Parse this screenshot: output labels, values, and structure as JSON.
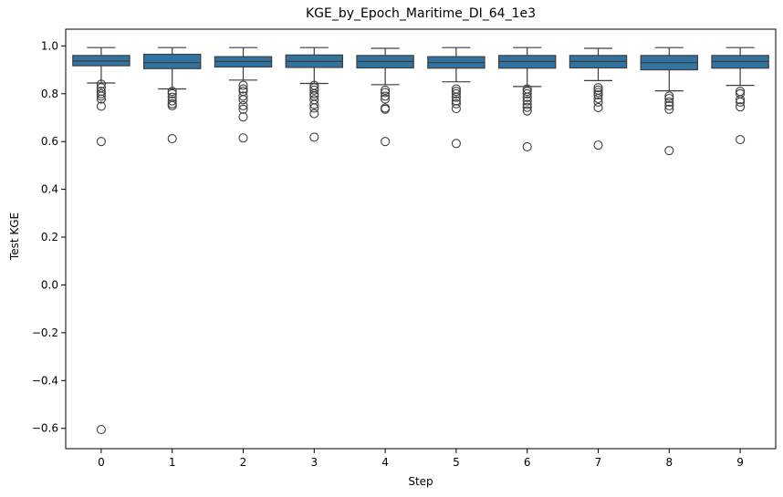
{
  "chart_data": {
    "type": "box",
    "title": "KGE_by_Epoch_Maritime_DI_64_1e3",
    "xlabel": "Step",
    "ylabel": "Test KGE",
    "ylim": [
      -0.685,
      1.07
    ],
    "yticks": [
      -0.6,
      -0.4,
      -0.2,
      0.0,
      0.2,
      0.4,
      0.6,
      0.8,
      1.0
    ],
    "ytick_labels": [
      "−0.6",
      "−0.4",
      "−0.2",
      "0.0",
      "0.2",
      "0.4",
      "0.6",
      "0.8",
      "1.0"
    ],
    "categories": [
      "0",
      "1",
      "2",
      "3",
      "4",
      "5",
      "6",
      "7",
      "8",
      "9"
    ],
    "box_color": "#3274a1",
    "line_color": "#3d3d3d",
    "boxes": [
      {
        "step": "0",
        "q1": 0.917,
        "median": 0.937,
        "q3": 0.96,
        "whisker_low": 0.845,
        "whisker_high": 0.993,
        "outliers": [
          0.84,
          0.825,
          0.81,
          0.8,
          0.79,
          0.778,
          0.748,
          0.6,
          -0.605
        ]
      },
      {
        "step": "1",
        "q1": 0.905,
        "median": 0.93,
        "q3": 0.965,
        "whisker_low": 0.82,
        "whisker_high": 0.993,
        "outliers": [
          0.81,
          0.8,
          0.785,
          0.77,
          0.758,
          0.75,
          0.612
        ]
      },
      {
        "step": "2",
        "q1": 0.912,
        "median": 0.935,
        "q3": 0.955,
        "whisker_low": 0.857,
        "whisker_high": 0.993,
        "outliers": [
          0.835,
          0.82,
          0.81,
          0.79,
          0.775,
          0.75,
          0.735,
          0.703,
          0.615
        ]
      },
      {
        "step": "3",
        "q1": 0.91,
        "median": 0.935,
        "q3": 0.962,
        "whisker_low": 0.843,
        "whisker_high": 0.993,
        "outliers": [
          0.835,
          0.825,
          0.815,
          0.8,
          0.79,
          0.775,
          0.755,
          0.74,
          0.717,
          0.618
        ]
      },
      {
        "step": "4",
        "q1": 0.908,
        "median": 0.935,
        "q3": 0.96,
        "whisker_low": 0.838,
        "whisker_high": 0.99,
        "outliers": [
          0.815,
          0.805,
          0.79,
          0.778,
          0.74,
          0.735,
          0.6
        ]
      },
      {
        "step": "5",
        "q1": 0.907,
        "median": 0.93,
        "q3": 0.955,
        "whisker_low": 0.85,
        "whisker_high": 0.993,
        "outliers": [
          0.82,
          0.81,
          0.8,
          0.785,
          0.77,
          0.758,
          0.738,
          0.592
        ]
      },
      {
        "step": "6",
        "q1": 0.907,
        "median": 0.935,
        "q3": 0.96,
        "whisker_low": 0.83,
        "whisker_high": 0.993,
        "outliers": [
          0.82,
          0.81,
          0.8,
          0.785,
          0.77,
          0.755,
          0.743,
          0.728,
          0.578
        ]
      },
      {
        "step": "7",
        "q1": 0.908,
        "median": 0.935,
        "q3": 0.96,
        "whisker_low": 0.855,
        "whisker_high": 0.99,
        "outliers": [
          0.825,
          0.815,
          0.805,
          0.795,
          0.78,
          0.765,
          0.742,
          0.585
        ]
      },
      {
        "step": "8",
        "q1": 0.9,
        "median": 0.93,
        "q3": 0.96,
        "whisker_low": 0.812,
        "whisker_high": 0.993,
        "outliers": [
          0.79,
          0.78,
          0.765,
          0.75,
          0.735,
          0.562
        ]
      },
      {
        "step": "9",
        "q1": 0.907,
        "median": 0.935,
        "q3": 0.96,
        "whisker_low": 0.835,
        "whisker_high": 0.993,
        "outliers": [
          0.81,
          0.8,
          0.775,
          0.765,
          0.745,
          0.608
        ]
      }
    ]
  }
}
